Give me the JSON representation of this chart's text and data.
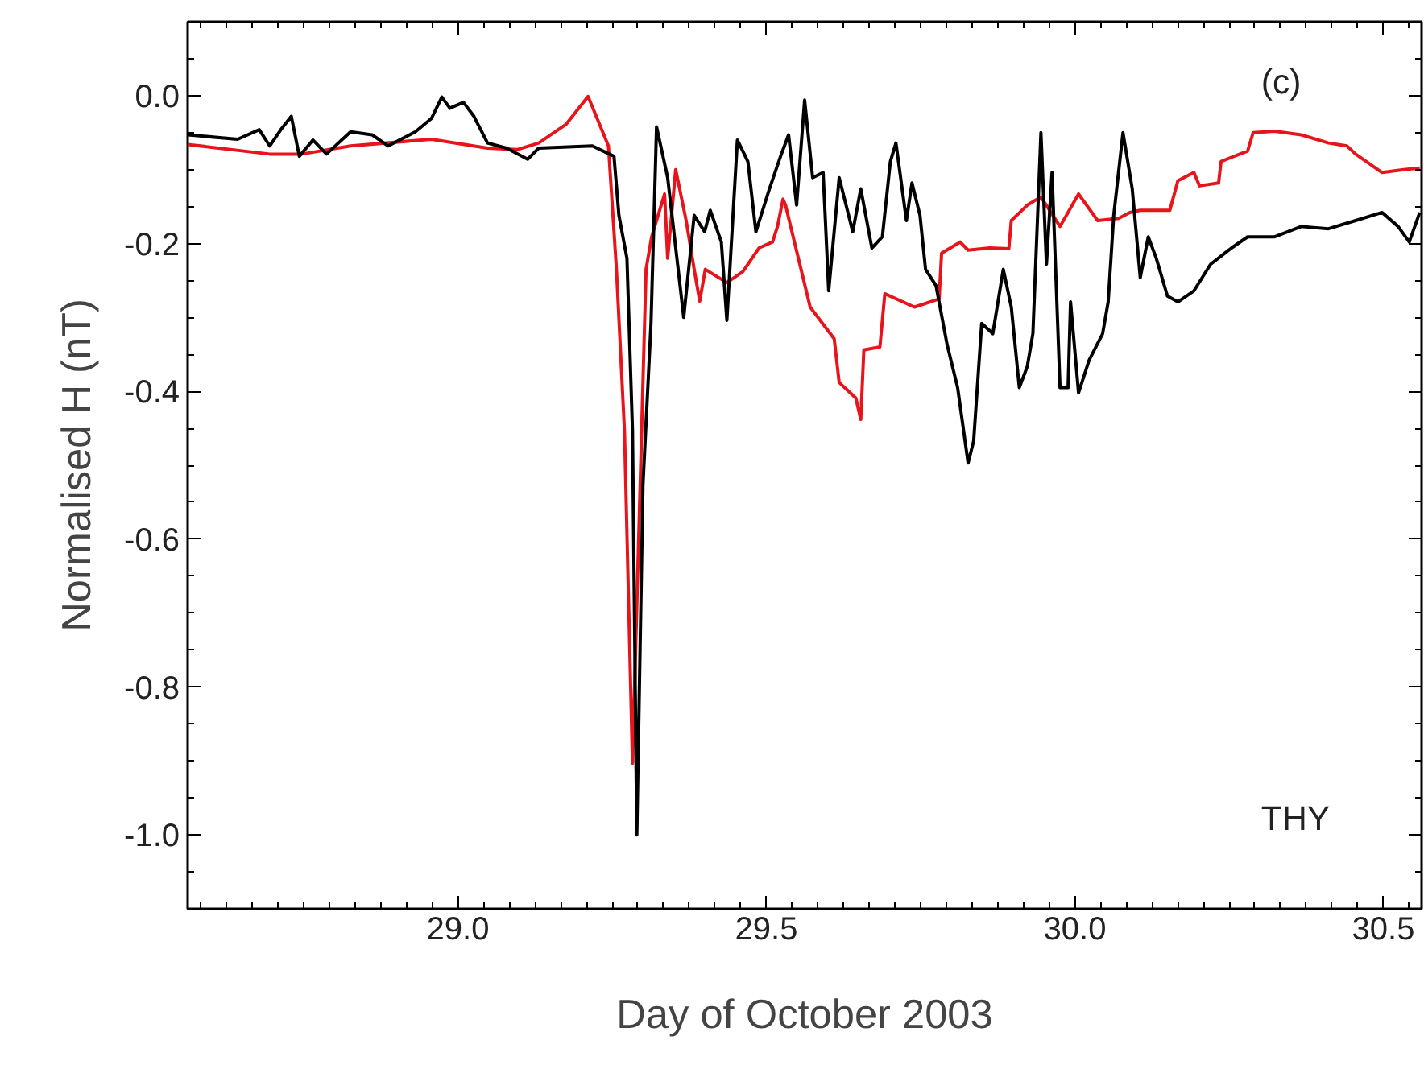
{
  "chart_data": {
    "type": "line",
    "xlabel": "Day of October 2003",
    "ylabel": "Normalised H (nT)",
    "annotations": [
      "(c)",
      "THY"
    ],
    "xlim": [
      28.562,
      30.562
    ],
    "ylim": [
      -1.1,
      0.1
    ],
    "xticks": [
      {
        "value": 29.0,
        "label": "29.0"
      },
      {
        "value": 29.5,
        "label": "29.5"
      },
      {
        "value": 30.0,
        "label": "30.0"
      },
      {
        "value": 30.5,
        "label": "30.5"
      }
    ],
    "yticks": [
      {
        "value": 0.0,
        "label": "0.0"
      },
      {
        "value": -0.2,
        "label": "-0.2"
      },
      {
        "value": -0.4,
        "label": "-0.4"
      },
      {
        "value": -0.6,
        "label": "-0.6"
      },
      {
        "value": -0.8,
        "label": "-0.8"
      },
      {
        "value": -1.0,
        "label": "-1.0"
      }
    ],
    "marker": "none",
    "line_style": "solid",
    "series": [
      {
        "color": "#e8141c",
        "x": [
          28.562,
          28.695,
          28.747,
          28.826,
          28.957,
          29.048,
          29.096,
          29.131,
          29.175,
          29.211,
          29.244,
          29.257,
          29.27,
          29.283,
          29.305,
          29.314,
          29.335,
          29.34,
          29.353,
          29.37,
          29.383,
          29.392,
          29.401,
          29.436,
          29.462,
          29.488,
          29.51,
          29.518,
          29.527,
          29.531,
          29.571,
          29.61,
          29.618,
          29.645,
          29.653,
          29.658,
          29.684,
          29.692,
          29.74,
          29.78,
          29.784,
          29.814,
          29.827,
          29.862,
          29.893,
          29.897,
          29.923,
          29.945,
          29.976,
          30.006,
          30.037,
          30.071,
          30.089,
          30.106,
          30.154,
          30.167,
          30.193,
          30.202,
          30.233,
          30.237,
          30.28,
          30.289,
          30.324,
          30.367,
          30.411,
          30.441,
          30.455,
          30.498,
          30.533,
          30.559
        ],
        "values": [
          -0.066,
          -0.079,
          -0.079,
          -0.068,
          -0.059,
          -0.071,
          -0.073,
          -0.064,
          -0.039,
          -0.001,
          -0.068,
          -0.235,
          -0.453,
          -0.903,
          -0.235,
          -0.191,
          -0.133,
          -0.22,
          -0.1,
          -0.169,
          -0.235,
          -0.278,
          -0.235,
          -0.253,
          -0.238,
          -0.206,
          -0.198,
          -0.177,
          -0.14,
          -0.148,
          -0.286,
          -0.329,
          -0.388,
          -0.409,
          -0.438,
          -0.344,
          -0.34,
          -0.268,
          -0.286,
          -0.275,
          -0.213,
          -0.198,
          -0.209,
          -0.206,
          -0.207,
          -0.169,
          -0.148,
          -0.137,
          -0.177,
          -0.133,
          -0.169,
          -0.166,
          -0.158,
          -0.155,
          -0.155,
          -0.115,
          -0.104,
          -0.122,
          -0.118,
          -0.089,
          -0.075,
          -0.05,
          -0.048,
          -0.053,
          -0.064,
          -0.068,
          -0.079,
          -0.104,
          -0.1,
          -0.098
        ]
      },
      {
        "color": "#000000",
        "x": [
          28.562,
          28.643,
          28.678,
          28.695,
          28.713,
          28.73,
          28.743,
          28.765,
          28.787,
          28.826,
          28.861,
          28.887,
          28.931,
          28.957,
          28.974,
          28.987,
          29.009,
          29.026,
          29.048,
          29.079,
          29.113,
          29.131,
          29.218,
          29.253,
          29.261,
          29.274,
          29.283,
          29.29,
          29.3,
          29.313,
          29.322,
          29.34,
          29.366,
          29.383,
          29.4,
          29.409,
          29.427,
          29.436,
          29.453,
          29.47,
          29.483,
          29.505,
          29.523,
          29.536,
          29.549,
          29.562,
          29.575,
          29.592,
          29.601,
          29.618,
          29.64,
          29.653,
          29.671,
          29.688,
          29.701,
          29.71,
          29.727,
          29.736,
          29.749,
          29.758,
          29.775,
          29.793,
          29.81,
          29.827,
          29.836,
          29.849,
          29.867,
          29.884,
          29.897,
          29.91,
          29.923,
          29.932,
          29.945,
          29.954,
          29.963,
          29.976,
          29.989,
          29.993,
          30.006,
          30.023,
          30.045,
          30.054,
          30.063,
          30.078,
          30.093,
          30.106,
          30.119,
          30.132,
          30.15,
          30.167,
          30.193,
          30.22,
          30.254,
          30.28,
          30.324,
          30.367,
          30.411,
          30.455,
          30.498,
          30.524,
          30.542,
          30.559
        ],
        "values": [
          -0.053,
          -0.059,
          -0.046,
          -0.068,
          -0.046,
          -0.028,
          -0.082,
          -0.06,
          -0.079,
          -0.049,
          -0.053,
          -0.068,
          -0.049,
          -0.031,
          -0.002,
          -0.017,
          -0.009,
          -0.028,
          -0.064,
          -0.071,
          -0.086,
          -0.071,
          -0.068,
          -0.082,
          -0.162,
          -0.22,
          -0.453,
          -1.0,
          -0.526,
          -0.308,
          -0.042,
          -0.111,
          -0.3,
          -0.162,
          -0.184,
          -0.155,
          -0.198,
          -0.304,
          -0.06,
          -0.089,
          -0.184,
          -0.126,
          -0.082,
          -0.053,
          -0.148,
          -0.006,
          -0.111,
          -0.104,
          -0.264,
          -0.111,
          -0.184,
          -0.126,
          -0.206,
          -0.191,
          -0.089,
          -0.064,
          -0.169,
          -0.118,
          -0.162,
          -0.235,
          -0.257,
          -0.337,
          -0.395,
          -0.497,
          -0.467,
          -0.308,
          -0.322,
          -0.235,
          -0.286,
          -0.395,
          -0.366,
          -0.322,
          -0.05,
          -0.228,
          -0.104,
          -0.395,
          -0.395,
          -0.279,
          -0.402,
          -0.358,
          -0.322,
          -0.279,
          -0.162,
          -0.05,
          -0.126,
          -0.246,
          -0.191,
          -0.22,
          -0.271,
          -0.279,
          -0.264,
          -0.228,
          -0.206,
          -0.191,
          -0.191,
          -0.177,
          -0.18,
          -0.169,
          -0.158,
          -0.177,
          -0.198,
          -0.158
        ]
      }
    ]
  }
}
